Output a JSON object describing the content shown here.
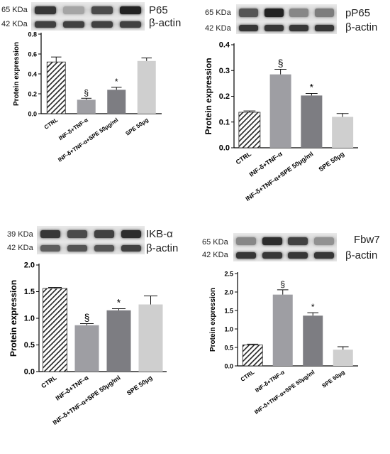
{
  "patterns": {
    "hatch_color": "#222222"
  },
  "panels": [
    {
      "id": "p65",
      "blots": [
        {
          "kda": "65 KDa",
          "name": "P65",
          "bands": [
            0.9,
            0.35,
            0.8,
            1.0
          ]
        },
        {
          "kda": "42 KDa",
          "name": "β-actin",
          "bands": [
            0.85,
            0.85,
            0.85,
            0.85
          ]
        }
      ]
    },
    {
      "id": "pp65",
      "blots": [
        {
          "kda": "65 KDa",
          "name": "pP65",
          "bands": [
            0.75,
            1.0,
            0.5,
            0.55
          ]
        },
        {
          "kda": "42 KDa",
          "name": "β-actin",
          "bands": [
            0.9,
            0.9,
            0.9,
            0.9
          ]
        }
      ]
    },
    {
      "id": "ikba",
      "blots": [
        {
          "kda": "39 KDa",
          "name": "IKB-α",
          "bands": [
            0.9,
            0.8,
            0.85,
            0.95
          ]
        },
        {
          "kda": "42 KDa",
          "name": "β-actin",
          "bands": [
            0.7,
            0.75,
            0.75,
            0.85
          ]
        }
      ]
    },
    {
      "id": "fbw7",
      "blots": [
        {
          "kda": "65 KDa",
          "name": "Fbw7",
          "bands": [
            0.5,
            0.95,
            0.85,
            0.45
          ]
        },
        {
          "kda": "42 KDa",
          "name": "β-actin",
          "bands": [
            0.9,
            0.9,
            0.9,
            0.9
          ]
        }
      ]
    }
  ],
  "chart_data": [
    {
      "type": "bar",
      "ylabel": "Protein expression",
      "ylim": [
        0,
        0.8
      ],
      "yticks": [
        "0.0",
        "0.2",
        "0.4",
        "0.6",
        "0.8"
      ],
      "categories": [
        "CTRL",
        "INF-δ+TNF-α",
        "INF-δ+TNF-α+SPE 50μg/ml",
        "SPE 50μg"
      ],
      "values": [
        0.52,
        0.14,
        0.24,
        0.53
      ],
      "errors": [
        0.05,
        0.015,
        0.025,
        0.03
      ],
      "annotations": [
        "",
        "§",
        "*",
        ""
      ],
      "fills": [
        "hatch",
        "#9e9ea3",
        "#7d7d82",
        "#cfcfcf"
      ]
    },
    {
      "type": "bar",
      "ylabel": "Protein expression",
      "ylim": [
        0,
        0.4
      ],
      "yticks": [
        "0.0",
        "0.1",
        "0.2",
        "0.3",
        "0.4"
      ],
      "categories": [
        "CTRL",
        "INF-δ+TNF-α",
        "INF-δ+TNF-α+SPE 50μg/ml",
        "SPE 50μg"
      ],
      "values": [
        0.138,
        0.285,
        0.203,
        0.12
      ],
      "errors": [
        0.005,
        0.02,
        0.008,
        0.013
      ],
      "annotations": [
        "",
        "§",
        "*",
        ""
      ],
      "fills": [
        "hatch",
        "#9e9ea3",
        "#7d7d82",
        "#cfcfcf"
      ]
    },
    {
      "type": "bar",
      "ylabel": "Protein expression",
      "ylim": [
        0,
        2.0
      ],
      "yticks": [
        "0.0",
        "0.5",
        "1.0",
        "1.5",
        "2.0"
      ],
      "categories": [
        "CTRL",
        "INF-δ+TNF-α",
        "INF-δ+TNF-α+SPE 50μg/ml",
        "SPE 50μg"
      ],
      "values": [
        1.56,
        0.87,
        1.15,
        1.26
      ],
      "errors": [
        0.02,
        0.03,
        0.03,
        0.16
      ],
      "annotations": [
        "",
        "§",
        "*",
        ""
      ],
      "fills": [
        "hatch",
        "#9e9ea3",
        "#7d7d82",
        "#cfcfcf"
      ]
    },
    {
      "type": "bar",
      "ylabel": "Protein expression",
      "ylim": [
        0,
        2.5
      ],
      "yticks": [
        "0.0",
        "0.5",
        "1.0",
        "1.5",
        "2.0",
        "2.5"
      ],
      "categories": [
        "CTRL",
        "INF-δ+TNF-α",
        "INF-δ+TNF-α+SPE 50μg/ml",
        "SPE 50μg"
      ],
      "values": [
        0.57,
        1.93,
        1.36,
        0.44
      ],
      "errors": [
        0.02,
        0.13,
        0.08,
        0.08
      ],
      "annotations": [
        "",
        "§",
        "*",
        ""
      ],
      "fills": [
        "hatch",
        "#9e9ea3",
        "#7d7d82",
        "#cfcfcf"
      ]
    }
  ]
}
